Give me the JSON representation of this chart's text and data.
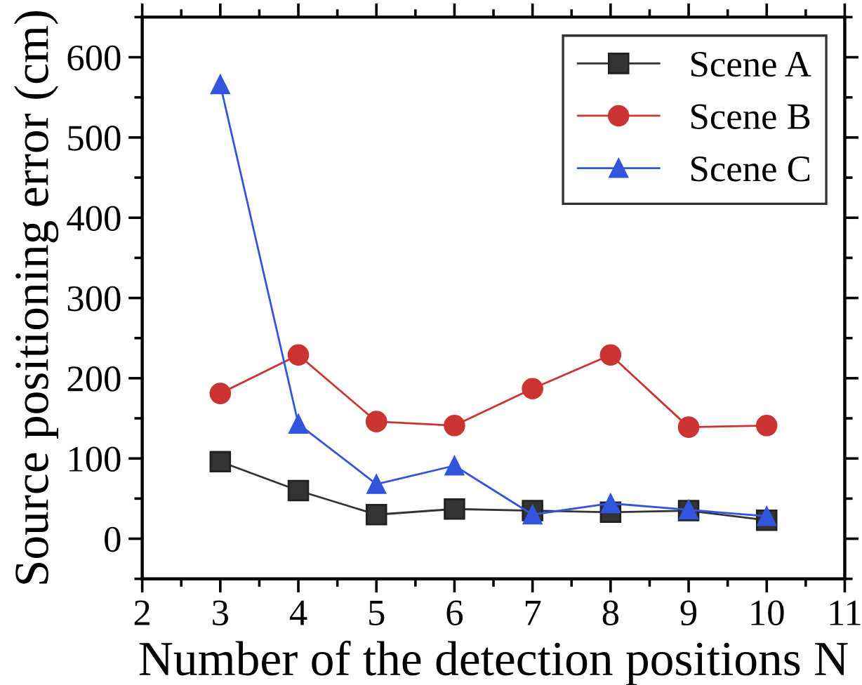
{
  "chart_data": {
    "type": "line",
    "xlabel": "Number of the detection positions N",
    "ylabel": "Source positioning error (cm)",
    "x": [
      3,
      4,
      5,
      6,
      7,
      8,
      9,
      10
    ],
    "series": [
      {
        "name": "Scene A",
        "color": "#333333",
        "marker": "square",
        "values": [
          96,
          60,
          30,
          37,
          35,
          33,
          35,
          23
        ]
      },
      {
        "name": "Scene B",
        "color": "#cc3333",
        "marker": "circle",
        "values": [
          181,
          229,
          146,
          141,
          187,
          229,
          139,
          141
        ]
      },
      {
        "name": "Scene C",
        "color": "#3355dd",
        "marker": "triangle",
        "values": [
          566,
          143,
          68,
          91,
          30,
          44,
          36,
          28
        ]
      }
    ],
    "xlim": [
      2,
      11
    ],
    "xticks": [
      2,
      3,
      4,
      5,
      6,
      7,
      8,
      9,
      10,
      11
    ],
    "ylim": [
      -50,
      650
    ],
    "yticks": [
      0,
      100,
      200,
      300,
      400,
      500,
      600
    ],
    "grid": false,
    "legend": "top right",
    "line_style": "solid"
  }
}
